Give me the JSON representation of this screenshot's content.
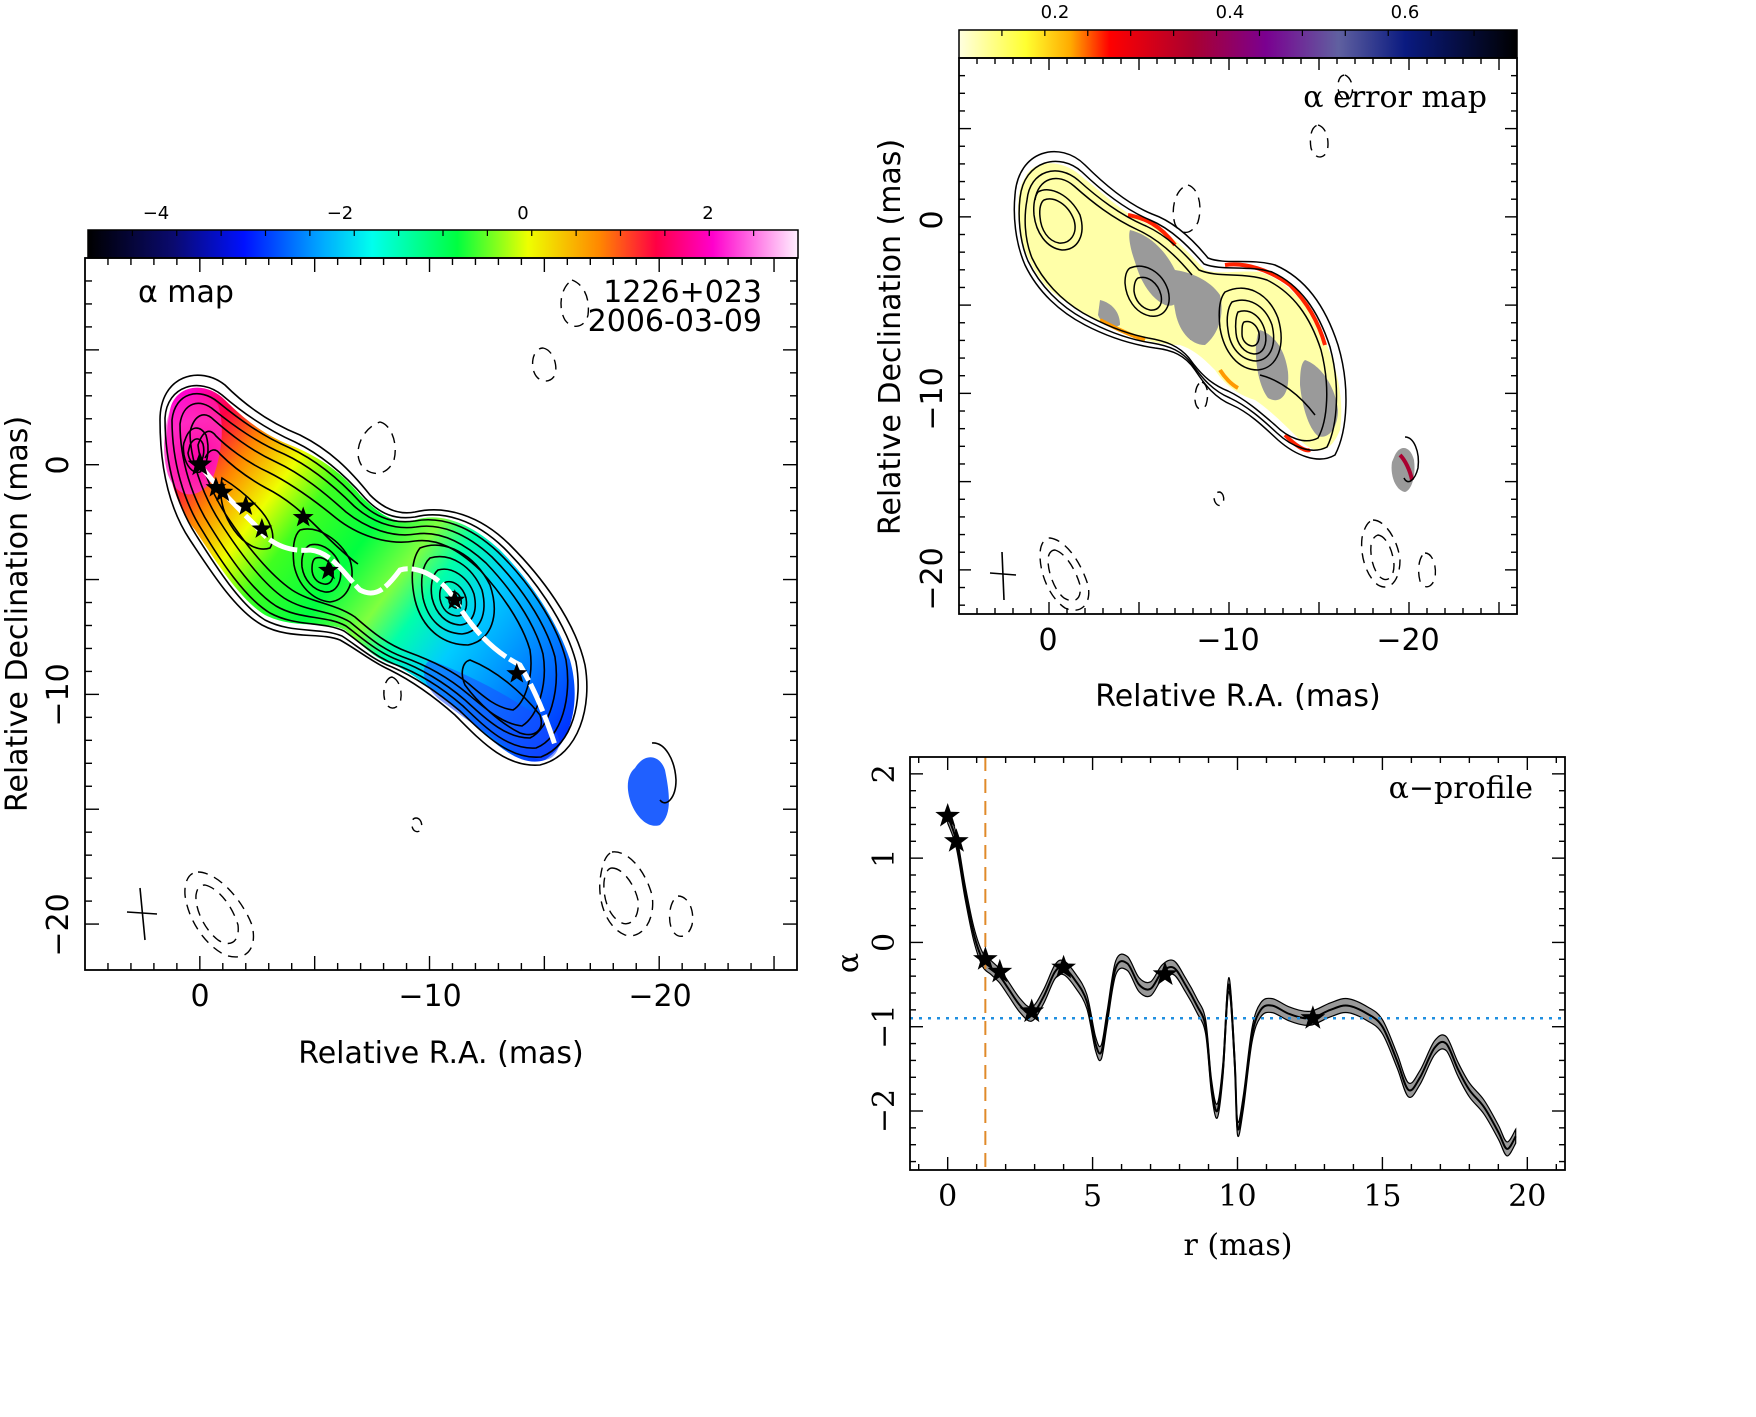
{
  "alpha_map": {
    "panel_title": "α map",
    "source": "1226+023",
    "date": "2006-03-09",
    "xlabel": "Relative R.A. (mas)",
    "ylabel": "Relative Declination (mas)",
    "xticks": [
      "0",
      "−10",
      "−20"
    ],
    "yticks": [
      "0",
      "−10",
      "−20"
    ],
    "colorbar_ticks": [
      "−4",
      "−2",
      "0",
      "2"
    ]
  },
  "error_map": {
    "panel_title": "α error map",
    "xlabel": "Relative R.A. (mas)",
    "ylabel": "Relative Declination (mas)",
    "xticks": [
      "0",
      "−10",
      "−20"
    ],
    "yticks": [
      "0",
      "−10",
      "−20"
    ],
    "colorbar_ticks": [
      "0.2",
      "0.4",
      "0.6"
    ]
  },
  "profile": {
    "panel_title": "α−profile",
    "xlabel": "r (mas)",
    "ylabel": "α",
    "xticks": [
      "0",
      "5",
      "10",
      "15",
      "20"
    ],
    "yticks": [
      "2",
      "1",
      "0",
      "−1",
      "−2"
    ]
  },
  "colors": {
    "reference_line": "#1f8fe0",
    "core_line": "#e08a2a",
    "band": "#999999"
  },
  "chart_data": [
    {
      "type": "heatmap",
      "title": "α map",
      "xlabel": "Relative R.A. (mas)",
      "ylabel": "Relative Declination (mas)",
      "xlim": [
        5,
        -26
      ],
      "ylim": [
        -22,
        9
      ],
      "colorbar_range": [
        -5,
        3
      ],
      "stars": [
        [
          0,
          0
        ],
        [
          -0.7,
          -1
        ],
        [
          -1,
          -1.2
        ],
        [
          -2,
          -1.8
        ],
        [
          -2.7,
          -2.8
        ],
        [
          -4.5,
          -2.3
        ],
        [
          -5.6,
          -4.6
        ],
        [
          -11.1,
          -5.9
        ],
        [
          -13.8,
          -9.1
        ]
      ]
    },
    {
      "type": "heatmap",
      "title": "α error map",
      "xlabel": "Relative R.A. (mas)",
      "ylabel": "Relative Declination (mas)",
      "xlim": [
        5,
        -26
      ],
      "ylim": [
        -22.5,
        9
      ],
      "colorbar_range": [
        0.1,
        0.75
      ]
    },
    {
      "type": "line",
      "title": "α−profile",
      "xlabel": "r (mas)",
      "ylabel": "α",
      "xlim": [
        -1.3,
        21.3
      ],
      "ylim": [
        -2.7,
        2.2
      ],
      "reference_y": -0.9,
      "core_x": 1.3,
      "series": [
        {
          "x": [
            0,
            0.3,
            0.6,
            0.9,
            1.2,
            1.5,
            1.8,
            2.1,
            2.5,
            2.9,
            3.3,
            3.7,
            4.0,
            4.4,
            4.8,
            5.1,
            5.3,
            5.5,
            5.8,
            6.2,
            6.6,
            7.0,
            7.4,
            7.8,
            8.2,
            8.6,
            8.9,
            9.1,
            9.3,
            9.5,
            9.7,
            9.9,
            10.0,
            10.2,
            10.5,
            10.8,
            11.2,
            11.8,
            12.5,
            13.2,
            13.8,
            14.5,
            15.0,
            15.5,
            15.9,
            16.3,
            16.8,
            17.2,
            17.6,
            18.0,
            18.5,
            19.0,
            19.3,
            19.6
          ],
          "y": [
            1.5,
            1.2,
            0.6,
            0.1,
            -0.2,
            -0.3,
            -0.4,
            -0.55,
            -0.75,
            -0.85,
            -0.65,
            -0.35,
            -0.3,
            -0.45,
            -0.7,
            -1.2,
            -1.3,
            -0.9,
            -0.3,
            -0.25,
            -0.5,
            -0.55,
            -0.35,
            -0.3,
            -0.5,
            -0.75,
            -1.0,
            -1.7,
            -2.0,
            -1.5,
            -0.5,
            -1.4,
            -2.2,
            -1.9,
            -1.1,
            -0.8,
            -0.75,
            -0.85,
            -0.9,
            -0.8,
            -0.75,
            -0.85,
            -1.0,
            -1.4,
            -1.75,
            -1.6,
            -1.25,
            -1.2,
            -1.5,
            -1.75,
            -1.95,
            -2.25,
            -2.45,
            -2.3
          ]
        }
      ],
      "markers": [
        [
          0,
          1.5
        ],
        [
          0.3,
          1.2
        ],
        [
          1.3,
          -0.2
        ],
        [
          1.8,
          -0.35
        ],
        [
          2.9,
          -0.82
        ],
        [
          4.0,
          -0.3
        ],
        [
          7.5,
          -0.38
        ],
        [
          12.6,
          -0.9
        ]
      ]
    }
  ]
}
